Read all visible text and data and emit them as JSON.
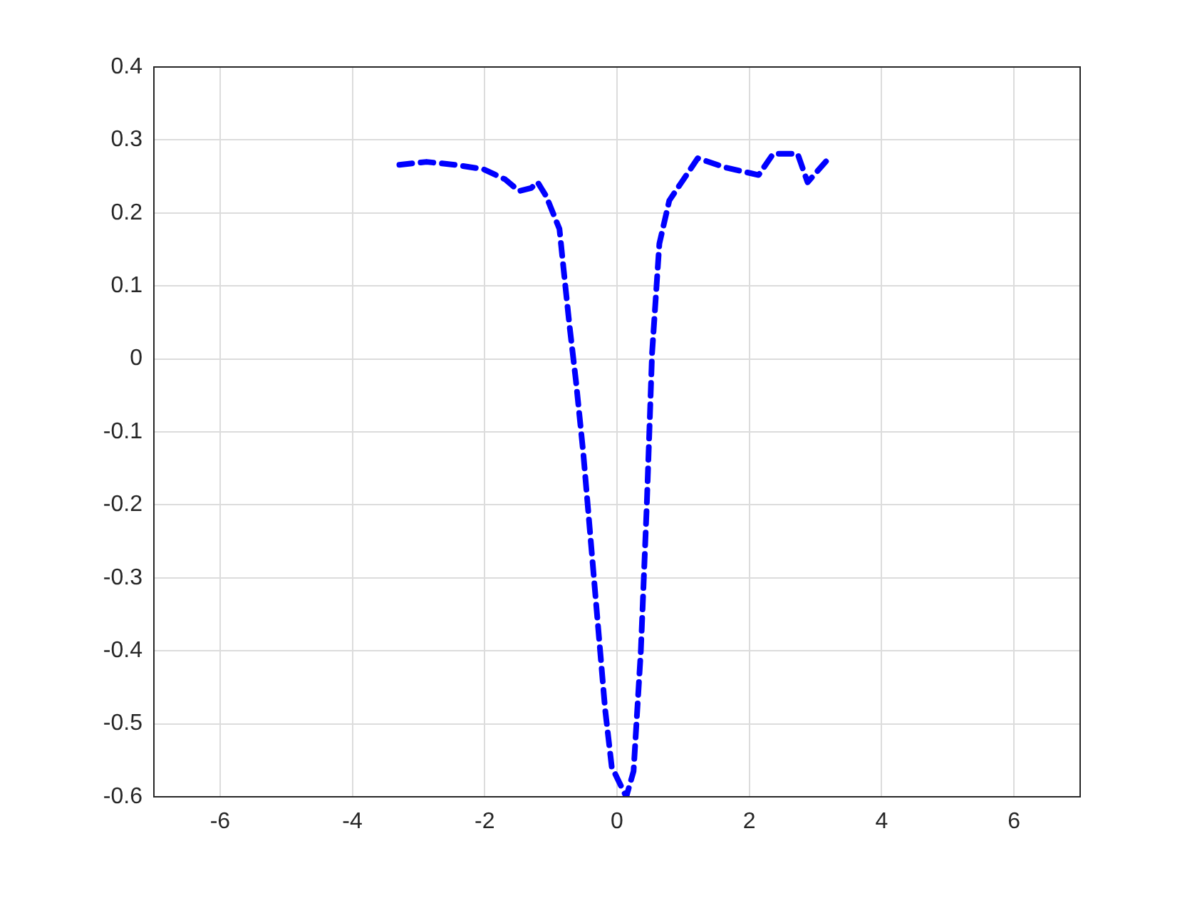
{
  "chart_data": {
    "type": "line",
    "xlim": [
      -7,
      7
    ],
    "xticks": [
      -6,
      -4,
      -2,
      0,
      2,
      4,
      6
    ],
    "ylim": [
      -0.6,
      0.4
    ],
    "yticks": [
      -0.6,
      -0.5,
      -0.4,
      -0.3,
      -0.2,
      -0.1,
      0,
      0.1,
      0.2,
      0.3,
      0.4
    ],
    "grid": true,
    "legend": false,
    "marker": "none",
    "line_style": "dashed",
    "series": [
      {
        "color": "#0000ff",
        "x": [
          -3.29,
          -2.88,
          -2.45,
          -2.02,
          -1.69,
          -1.48,
          -1.3,
          -1.2,
          -1.07,
          -0.87,
          -0.81,
          -0.72,
          -0.62,
          -0.51,
          -0.4,
          -0.29,
          -0.18,
          -0.08,
          0.14,
          0.25,
          0.36,
          0.45,
          0.53,
          0.64,
          0.79,
          1.22,
          1.65,
          2.14,
          2.36,
          2.73,
          2.88,
          3.22
        ],
        "values": [
          0.266,
          0.27,
          0.266,
          0.26,
          0.246,
          0.23,
          0.234,
          0.242,
          0.223,
          0.178,
          0.125,
          0.047,
          -0.031,
          -0.129,
          -0.246,
          -0.363,
          -0.48,
          -0.559,
          -0.6,
          -0.565,
          -0.4,
          -0.2,
          0.008,
          0.158,
          0.217,
          0.275,
          0.262,
          0.252,
          0.281,
          0.281,
          0.242,
          0.277
        ]
      }
    ]
  }
}
